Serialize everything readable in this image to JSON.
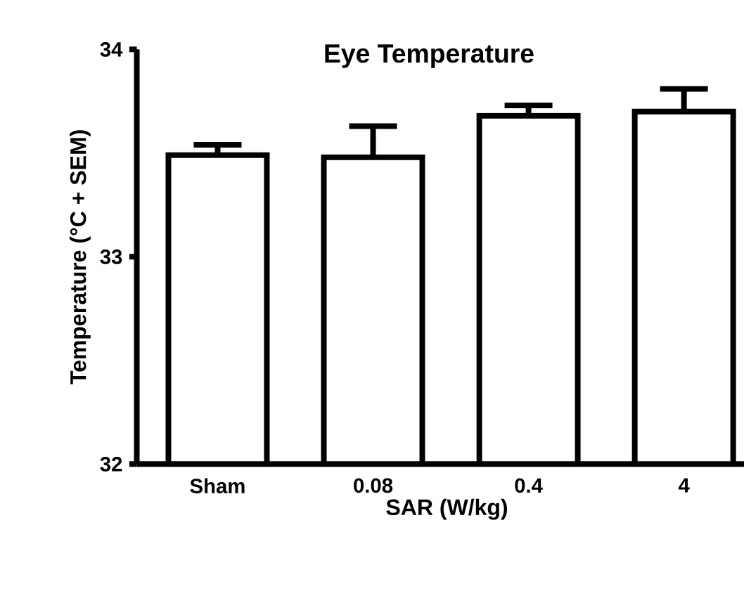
{
  "chart_data": {
    "type": "bar",
    "title": "Eye Temperature",
    "xlabel": "SAR (W/kg)",
    "ylabel": "Temperature (°C + SEM)",
    "categories": [
      "Sham",
      "0.08",
      "0.4",
      "4"
    ],
    "values": [
      33.49,
      33.48,
      33.68,
      33.7
    ],
    "errors": [
      [
        33.49,
        33.54
      ],
      [
        33.48,
        33.63
      ],
      [
        33.68,
        33.73
      ],
      [
        33.7,
        33.81
      ]
    ],
    "color": "#ffffff",
    "ylim": [
      32,
      34
    ],
    "yticks": [
      32,
      33,
      34
    ],
    "grid": false
  }
}
